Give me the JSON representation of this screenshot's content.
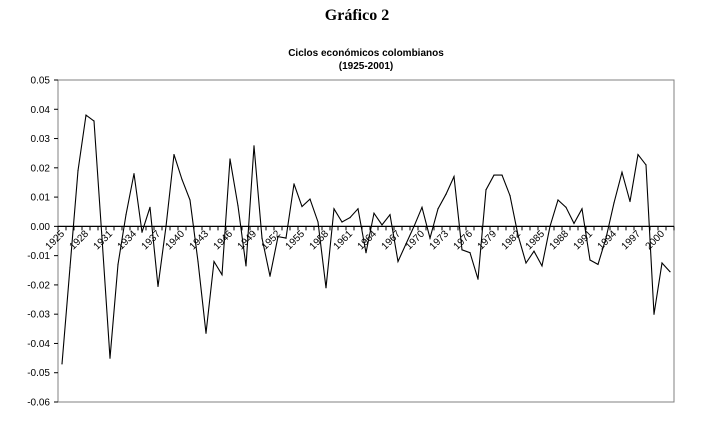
{
  "figure_label": "Gráfico 2",
  "chart_data": {
    "type": "line",
    "title": "Ciclos económicos colombianos",
    "subtitle": "(1925-2001)",
    "xlabel": "",
    "ylabel": "",
    "x_start": 1925,
    "x_end": 2001,
    "x_tick_labels": [
      "1925",
      "1928",
      "1931",
      "1934",
      "1937",
      "1940",
      "1943",
      "1946",
      "1949",
      "1952",
      "1955",
      "1958",
      "1961",
      "1964",
      "1967",
      "1970",
      "1973",
      "1976",
      "1979",
      "1982",
      "1985",
      "1988",
      "1991",
      "1994",
      "1997",
      "2000"
    ],
    "y_tick_labels": [
      "0.05",
      "0.04",
      "0.03",
      "0.02",
      "0.01",
      "0.00",
      "-0.01",
      "-0.02",
      "-0.03",
      "-0.04",
      "-0.05",
      "-0.06"
    ],
    "ylim": [
      -0.06,
      0.05
    ],
    "grid": false,
    "legend": "none",
    "line_color": "#000000",
    "values": [
      -0.047,
      -0.014,
      0.019,
      0.038,
      0.036,
      -0.004,
      -0.045,
      -0.013,
      0.004,
      0.018,
      -0.002,
      0.0065,
      -0.0205,
      0.0,
      0.0245,
      0.016,
      0.009,
      -0.012,
      -0.0365,
      -0.012,
      -0.0165,
      0.023,
      0.007,
      -0.0135,
      0.0275,
      -0.004,
      -0.017,
      -0.0035,
      -0.004,
      0.0145,
      0.0068,
      0.0093,
      0.0015,
      -0.021,
      0.006,
      0.0015,
      0.003,
      0.006,
      -0.009,
      0.0045,
      0.0005,
      0.004,
      -0.012,
      -0.006,
      0.0,
      0.0065,
      -0.004,
      0.006,
      0.011,
      0.017,
      -0.008,
      -0.009,
      -0.018,
      0.0125,
      0.0175,
      0.0175,
      0.0105,
      -0.003,
      -0.0125,
      -0.0085,
      -0.0135,
      0.0,
      0.009,
      0.0065,
      0.001,
      0.006,
      -0.0115,
      -0.013,
      -0.004,
      0.008,
      0.0185,
      0.0085,
      0.0245,
      0.021,
      -0.03,
      -0.0125,
      -0.0155
    ]
  }
}
